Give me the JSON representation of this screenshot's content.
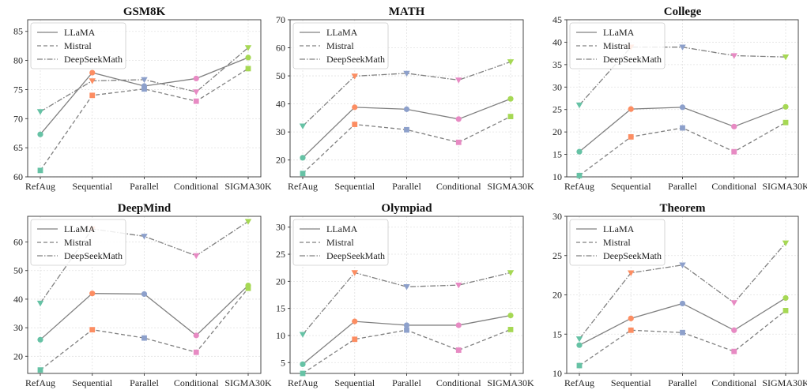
{
  "chart_data": [
    {
      "type": "line",
      "title": "GSM8K",
      "categories": [
        "RefAug",
        "Sequential",
        "Parallel",
        "Conditional",
        "SIGMA30K"
      ],
      "ylim": [
        60,
        87
      ],
      "yticks": [
        60,
        65,
        70,
        75,
        80,
        85
      ],
      "grid": true,
      "legend": "top-left",
      "series": [
        {
          "name": "LLaMA",
          "values": [
            67.3,
            77.9,
            75.6,
            76.9,
            80.5
          ]
        },
        {
          "name": "Mistral",
          "values": [
            61.1,
            74.0,
            75.1,
            73.0,
            78.6
          ]
        },
        {
          "name": "DeepSeekMath",
          "values": [
            71.2,
            76.5,
            76.7,
            74.6,
            82.2
          ]
        }
      ]
    },
    {
      "type": "line",
      "title": "MATH",
      "categories": [
        "RefAug",
        "Sequential",
        "Parallel",
        "Conditional",
        "SIGMA30K"
      ],
      "ylim": [
        14,
        70
      ],
      "yticks": [
        20,
        30,
        40,
        50,
        60,
        70
      ],
      "grid": true,
      "legend": "top-left",
      "series": [
        {
          "name": "LLaMA",
          "values": [
            20.8,
            38.8,
            38.1,
            34.6,
            41.8
          ]
        },
        {
          "name": "Mistral",
          "values": [
            15.2,
            32.7,
            30.8,
            26.3,
            35.5
          ]
        },
        {
          "name": "DeepSeekMath",
          "values": [
            32.1,
            49.9,
            50.9,
            48.5,
            55.0
          ]
        }
      ]
    },
    {
      "type": "line",
      "title": "College",
      "categories": [
        "RefAug",
        "Sequential",
        "Parallel",
        "Conditional",
        "SIGMA30K"
      ],
      "ylim": [
        10,
        45
      ],
      "yticks": [
        10,
        15,
        20,
        25,
        30,
        35,
        40,
        45
      ],
      "grid": true,
      "legend": "top-left",
      "series": [
        {
          "name": "LLaMA",
          "values": [
            15.6,
            25.1,
            25.5,
            21.2,
            25.6
          ]
        },
        {
          "name": "Mistral",
          "values": [
            10.3,
            18.9,
            20.9,
            15.6,
            22.1
          ]
        },
        {
          "name": "DeepSeekMath",
          "values": [
            26.0,
            38.9,
            38.9,
            37.0,
            36.7
          ]
        }
      ]
    },
    {
      "type": "line",
      "title": "DeepMind",
      "categories": [
        "RefAug",
        "Sequential",
        "Parallel",
        "Conditional",
        "SIGMA30K"
      ],
      "ylim": [
        14,
        69
      ],
      "yticks": [
        20,
        30,
        40,
        50,
        60
      ],
      "grid": true,
      "legend": "top-left",
      "series": [
        {
          "name": "LLaMA",
          "values": [
            25.8,
            42.0,
            41.8,
            27.3,
            44.8
          ]
        },
        {
          "name": "Mistral",
          "values": [
            15.2,
            29.3,
            26.4,
            21.4,
            43.8
          ]
        },
        {
          "name": "DeepSeekMath",
          "values": [
            38.6,
            64.6,
            62.0,
            55.2,
            67.2
          ]
        }
      ]
    },
    {
      "type": "line",
      "title": "Olympiad",
      "categories": [
        "RefAug",
        "Sequential",
        "Parallel",
        "Conditional",
        "SIGMA30K"
      ],
      "ylim": [
        3,
        32
      ],
      "yticks": [
        5,
        10,
        15,
        20,
        25,
        30
      ],
      "grid": true,
      "legend": "top-left",
      "series": [
        {
          "name": "LLaMA",
          "values": [
            4.7,
            12.6,
            11.9,
            11.9,
            13.7
          ]
        },
        {
          "name": "Mistral",
          "values": [
            3.0,
            9.3,
            11.0,
            7.3,
            11.1
          ]
        },
        {
          "name": "DeepSeekMath",
          "values": [
            10.2,
            21.6,
            19.0,
            19.3,
            21.6
          ]
        }
      ]
    },
    {
      "type": "line",
      "title": "Theorem",
      "categories": [
        "RefAug",
        "Sequential",
        "Parallel",
        "Conditional",
        "SIGMA30K"
      ],
      "ylim": [
        10,
        30
      ],
      "yticks": [
        10,
        15,
        20,
        25,
        30
      ],
      "grid": true,
      "legend": "top-left",
      "series": [
        {
          "name": "LLaMA",
          "values": [
            13.6,
            17.0,
            18.9,
            15.5,
            19.6
          ]
        },
        {
          "name": "Mistral",
          "values": [
            11.0,
            15.5,
            15.2,
            12.8,
            18.0
          ]
        },
        {
          "name": "DeepSeekMath",
          "values": [
            14.4,
            22.8,
            23.8,
            19.0,
            26.6
          ]
        }
      ]
    }
  ],
  "style": {
    "category_colors": [
      "#66c2a5",
      "#fc8d62",
      "#8da0cb",
      "#e78ac3",
      "#a6d854"
    ],
    "line_color": "#808080",
    "line_dashes": [
      "",
      "5,3",
      "7,2,1.5,2"
    ],
    "markers": [
      "circle",
      "square",
      "triangle-down"
    ]
  }
}
